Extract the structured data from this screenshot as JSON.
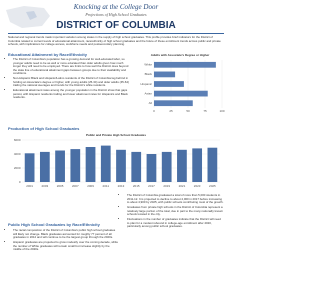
{
  "header": {
    "series_title": "Knocking at the College Door",
    "subtitle": "Projections of High School Graduates",
    "title": "DISTRICT OF COLUMBIA"
  },
  "intro": "National and regional trends mask important variation among states in the supply of high school graduates. This profile provides brief indicators for the District of Columbia related to current levels of educational attainment, race/ethnicity of high school graduates and the future of these enrollment trends across public and private schools, with implications for college access, workforce needs and postsecondary planning.",
  "sections": [
    {
      "heading": "Educational Attainment by Race/Ethnicity",
      "bullets": [
        "The District of Columbia's population has a growing demand for well-educated labor, so younger adults need to be as well or more educated than older adults given how much longer they will need to be employed. There are limits to how well the District does beyond the state line of educational attainment gaps between groups due to their availability and conditions.",
        "Non-Hispanic Black and Hispanic/Latino residents of the District of Columbia lag behind in holding an Associate's degree or higher, with young adults (25-34) and older adults (45-64) trailing the national averages and trends for the District's white residents.",
        "Educational attainment rates among the younger population in the District show that gaps persist, with Hispanic residents trailing and lower attainment rates for Hispanics and Black residents."
      ]
    },
    {
      "heading": "Production of High School Graduates"
    },
    {
      "heading": "Public High School Graduates by Race/Ethnicity",
      "bullets": [
        "The racial composition of the District of Columbia's public high school graduates will likely not change. Black graduates accounted for roughly 77 percent of all graduates in 2012 and will continue to be the largest group through the 2020s.",
        "Hispanic graduates are projected to grow modestly over the coming decade, while the number of White graduates will remain small but increase slightly by the middle of the 2020s."
      ]
    }
  ],
  "right_bullets": [
    "The District of Columbia graduated a total of more than 5,000 students in 2011-12. It is projected to decline to about 4,000 in 2017 before increasing to about 4,900 by 2025, with public schools contributing most of the growth.",
    "Graduates from private high schools in the District of Columbia represent a relatively large portion of the total, due in part to the many nationally known schools located in the city.",
    "Fluctuations in the number of graduates indicate that the District will need to plan for a modest rebound in college-age enrollment after 2020, particularly among public school graduates."
  ],
  "attainment_chart": {
    "type": "bar",
    "title": "Adults with Associate's Degree or Higher",
    "categories": [
      "White",
      "Black",
      "Hispanic",
      "Asian",
      "All"
    ],
    "values": [
      91,
      31,
      44,
      79,
      57
    ],
    "color": "#5b7fb5",
    "xlim": [
      0,
      100
    ],
    "xticks": [
      0,
      25,
      50,
      75,
      100
    ]
  },
  "graduates_chart": {
    "type": "bar",
    "title": "Public and Private High School Graduates",
    "categories": [
      "2001",
      "2003",
      "2005",
      "2007",
      "2009",
      "2011",
      "2013",
      "2015",
      "2017",
      "2019",
      "2021",
      "2023",
      "2025"
    ],
    "values": [
      4100,
      4300,
      4500,
      4700,
      5000,
      5200,
      4600,
      4300,
      4000,
      4300,
      4600,
      4800,
      4900
    ],
    "color": "#4a6fa5",
    "ylim": [
      0,
      6000
    ],
    "yticks": [
      0,
      2000,
      4000,
      6000
    ]
  }
}
